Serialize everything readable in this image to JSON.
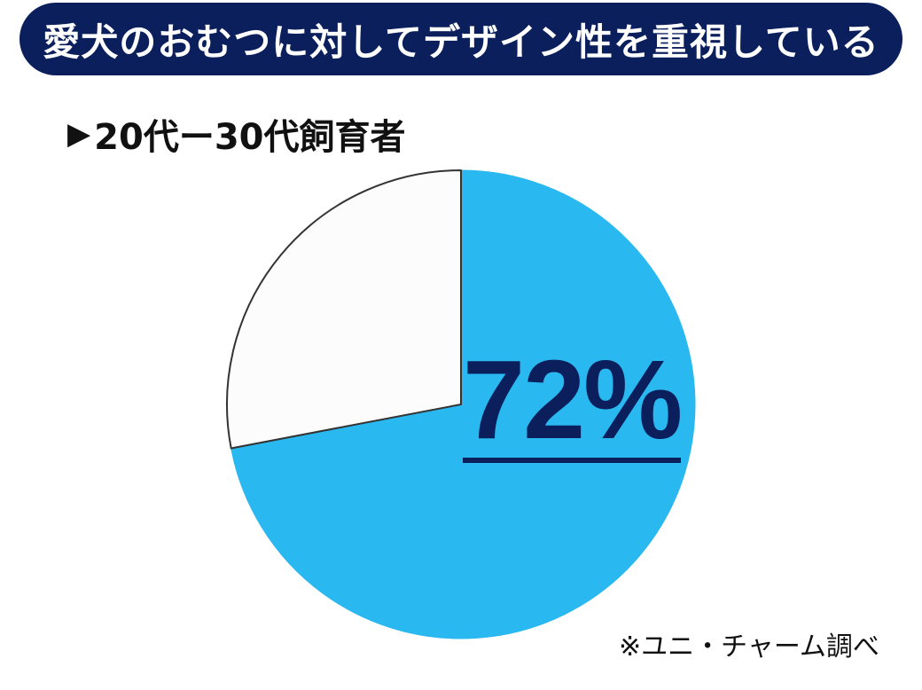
{
  "chart_data": {
    "type": "pie",
    "title": "愛犬のおむつに対してデザイン性を重視している",
    "subtitle": "20代ー30代飼育者",
    "subtitle_marker": "▶",
    "slices": [
      {
        "value": 72,
        "label": "72%",
        "color": "#29b8ef"
      },
      {
        "value": 28,
        "color": "#fcfcfc"
      }
    ],
    "start_angle": "12 o'clock",
    "direction": "clockwise",
    "note": "※ユニ・チャーム調べ"
  },
  "colors": {
    "banner": "#0a1f5c",
    "highlight_slice": "#29b8ef",
    "rest_slice": "#fcfcfc",
    "label": "#0a1f5c"
  }
}
